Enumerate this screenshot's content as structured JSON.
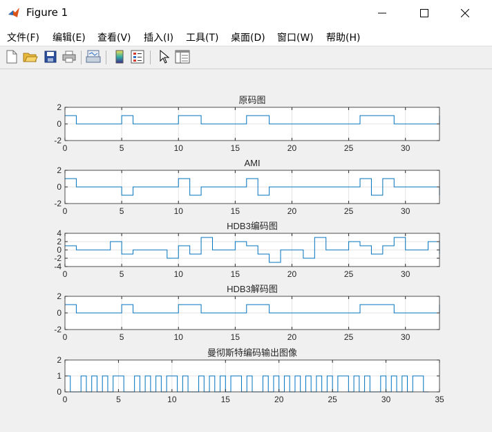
{
  "window": {
    "title": "Figure 1"
  },
  "menu": [
    {
      "label": "文件(F)"
    },
    {
      "label": "编辑(E)"
    },
    {
      "label": "查看(V)"
    },
    {
      "label": "插入(I)"
    },
    {
      "label": "工具(T)"
    },
    {
      "label": "桌面(D)"
    },
    {
      "label": "窗口(W)"
    },
    {
      "label": "帮助(H)"
    }
  ],
  "toolbar": [
    "new-figure-icon",
    "open-file-icon",
    "save-icon",
    "print-icon",
    "link-plot-icon",
    "insert-colorbar-icon",
    "insert-legend-icon",
    "pointer-icon",
    "property-editor-icon"
  ],
  "colors": {
    "line": "#0072bd",
    "grid": "#e3e3e3",
    "axes_bg": "#ffffff"
  },
  "chart_data": [
    {
      "type": "line",
      "step": true,
      "title": "原码图",
      "xlim": [
        0,
        33
      ],
      "ylim": [
        -2,
        2
      ],
      "xticks": [
        "0",
        "5",
        "10",
        "15",
        "20",
        "25",
        "30"
      ],
      "yticks": [
        "2",
        "0",
        "-2"
      ],
      "x": [
        0,
        1,
        2,
        3,
        4,
        5,
        6,
        7,
        8,
        9,
        10,
        11,
        12,
        13,
        14,
        15,
        16,
        17,
        18,
        19,
        20,
        21,
        22,
        23,
        24,
        25,
        26,
        27,
        28,
        29,
        30,
        31,
        32,
        33
      ],
      "y": [
        1,
        0,
        0,
        0,
        0,
        1,
        0,
        0,
        0,
        0,
        1,
        1,
        0,
        0,
        0,
        0,
        1,
        1,
        0,
        0,
        0,
        0,
        0,
        0,
        0,
        0,
        1,
        1,
        1,
        0,
        0,
        0,
        0,
        1
      ]
    },
    {
      "type": "line",
      "step": true,
      "title": "AMI",
      "xlim": [
        0,
        33
      ],
      "ylim": [
        -2,
        2
      ],
      "xticks": [
        "0",
        "5",
        "10",
        "15",
        "20",
        "25",
        "30"
      ],
      "yticks": [
        "2",
        "0",
        "-2"
      ],
      "x": [
        0,
        1,
        2,
        3,
        4,
        5,
        6,
        7,
        8,
        9,
        10,
        11,
        12,
        13,
        14,
        15,
        16,
        17,
        18,
        19,
        20,
        21,
        22,
        23,
        24,
        25,
        26,
        27,
        28,
        29,
        30,
        31,
        32,
        33
      ],
      "y": [
        1,
        0,
        0,
        0,
        0,
        -1,
        0,
        0,
        0,
        0,
        1,
        -1,
        0,
        0,
        0,
        0,
        1,
        -1,
        0,
        0,
        0,
        0,
        0,
        0,
        0,
        0,
        1,
        -1,
        1,
        0,
        0,
        0,
        0,
        -1
      ]
    },
    {
      "type": "line",
      "step": true,
      "title": "HDB3编码图",
      "xlim": [
        0,
        33
      ],
      "ylim": [
        -4,
        4
      ],
      "xticks": [
        "0",
        "5",
        "10",
        "15",
        "20",
        "25",
        "30"
      ],
      "yticks": [
        "4",
        "2",
        "0",
        "-2",
        "-4"
      ],
      "x": [
        0,
        1,
        2,
        3,
        4,
        5,
        6,
        7,
        8,
        9,
        10,
        11,
        12,
        13,
        14,
        15,
        16,
        17,
        18,
        19,
        20,
        21,
        22,
        23,
        24,
        25,
        26,
        27,
        28,
        29,
        30,
        31,
        32,
        33
      ],
      "y": [
        1,
        0,
        0,
        0,
        2,
        -1,
        0,
        0,
        0,
        -2,
        1,
        -1,
        3,
        0,
        0,
        2,
        1,
        -1,
        -3,
        0,
        0,
        -2,
        3,
        0,
        0,
        2,
        1,
        -1,
        1,
        3,
        0,
        0,
        2,
        -1
      ]
    },
    {
      "type": "line",
      "step": true,
      "title": "HDB3解码图",
      "xlim": [
        0,
        33
      ],
      "ylim": [
        -2,
        2
      ],
      "xticks": [
        "0",
        "5",
        "10",
        "15",
        "20",
        "25",
        "30"
      ],
      "yticks": [
        "2",
        "0",
        "-2"
      ],
      "x": [
        0,
        1,
        2,
        3,
        4,
        5,
        6,
        7,
        8,
        9,
        10,
        11,
        12,
        13,
        14,
        15,
        16,
        17,
        18,
        19,
        20,
        21,
        22,
        23,
        24,
        25,
        26,
        27,
        28,
        29,
        30,
        31,
        32,
        33
      ],
      "y": [
        1,
        0,
        0,
        0,
        0,
        1,
        0,
        0,
        0,
        0,
        1,
        1,
        0,
        0,
        0,
        0,
        1,
        1,
        0,
        0,
        0,
        0,
        0,
        0,
        0,
        0,
        1,
        1,
        1,
        0,
        0,
        0,
        0,
        1
      ]
    },
    {
      "type": "line",
      "step": true,
      "title": "曼彻斯特编码输出图像",
      "xlim": [
        0,
        35
      ],
      "ylim": [
        0,
        2
      ],
      "xticks": [
        "0",
        "5",
        "10",
        "15",
        "20",
        "25",
        "30",
        "35"
      ],
      "yticks": [
        "2",
        "1",
        "0"
      ],
      "x": [
        0,
        0.5,
        1,
        1.5,
        2,
        2.5,
        3,
        3.5,
        4,
        4.5,
        5,
        5.5,
        6,
        6.5,
        7,
        7.5,
        8,
        8.5,
        9,
        9.5,
        10,
        10.5,
        11,
        11.5,
        12,
        12.5,
        13,
        13.5,
        14,
        14.5,
        15,
        15.5,
        16,
        16.5,
        17,
        17.5,
        18,
        18.5,
        19,
        19.5,
        20,
        20.5,
        21,
        21.5,
        22,
        22.5,
        23,
        23.5,
        24,
        24.5,
        25,
        25.5,
        26,
        26.5,
        27,
        27.5,
        28,
        28.5,
        29,
        29.5,
        30,
        30.5,
        31,
        31.5,
        32,
        32.5,
        33,
        33.5,
        34
      ],
      "y": [
        1,
        0,
        0,
        1,
        0,
        1,
        0,
        1,
        0,
        1,
        1,
        0,
        0,
        1,
        0,
        1,
        0,
        1,
        0,
        1,
        1,
        0,
        1,
        0,
        0,
        1,
        0,
        1,
        0,
        1,
        0,
        1,
        1,
        0,
        1,
        0,
        0,
        1,
        0,
        1,
        0,
        1,
        0,
        1,
        0,
        1,
        0,
        1,
        0,
        1,
        0,
        1,
        1,
        0,
        1,
        0,
        1,
        0,
        0,
        1,
        0,
        1,
        0,
        1,
        0,
        1,
        1,
        0,
        0
      ]
    }
  ]
}
